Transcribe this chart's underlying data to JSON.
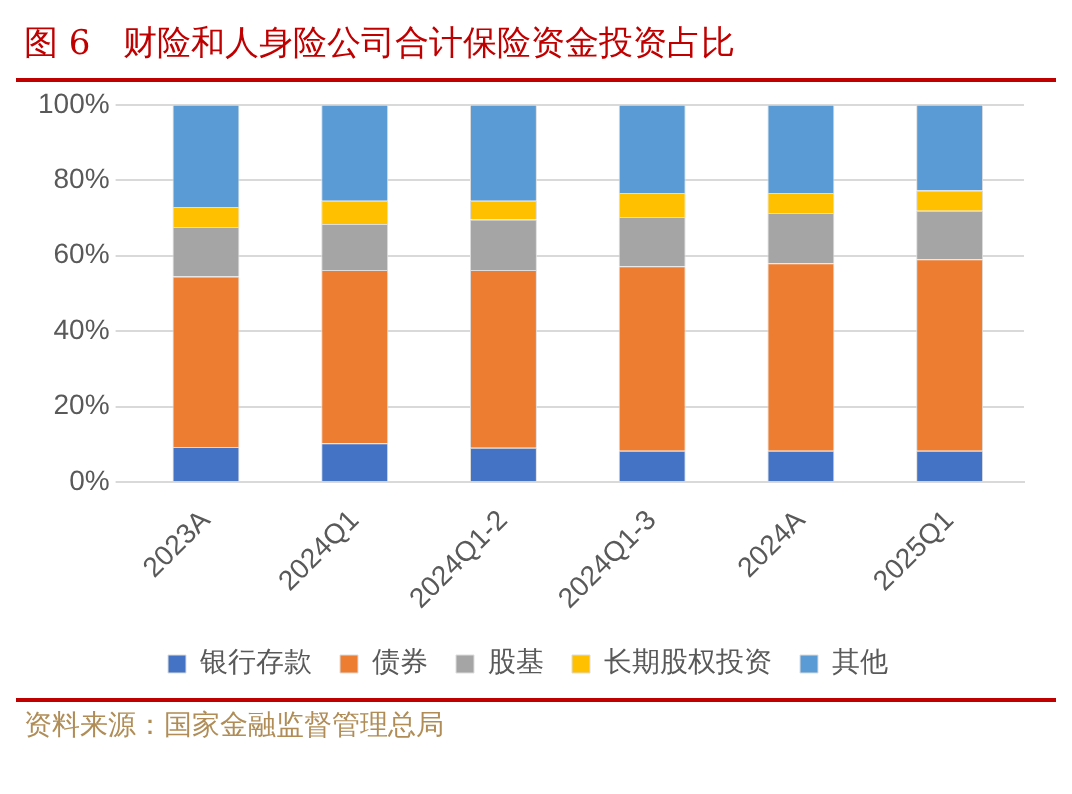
{
  "chart_data": {
    "type": "bar",
    "title": "图 6   财险和人身险公司合计保险资金投资占比",
    "stacked": true,
    "categories": [
      "2023A",
      "2024Q1",
      "2024Q1-2",
      "2024Q1-3",
      "2024A",
      "2025Q1"
    ],
    "series": [
      {
        "name": "银行存款",
        "color": "#4472c4",
        "values": [
          9.3,
          10.3,
          9.1,
          8.3,
          8.3,
          8.3
        ]
      },
      {
        "name": "债券",
        "color": "#ed7d31",
        "values": [
          45.2,
          45.9,
          47.1,
          48.9,
          49.7,
          50.8
        ]
      },
      {
        "name": "股基",
        "color": "#a5a5a5",
        "values": [
          13.1,
          12.2,
          13.4,
          13.1,
          13.3,
          12.8
        ]
      },
      {
        "name": "长期股权投资",
        "color": "#ffc000",
        "values": [
          5.3,
          6.2,
          5.0,
          6.3,
          5.3,
          5.4
        ]
      },
      {
        "name": "其他",
        "color": "#5b9bd5",
        "values": [
          27.1,
          25.4,
          25.4,
          23.4,
          23.4,
          22.7
        ]
      }
    ],
    "ylim": [
      0,
      100
    ],
    "yticks": [
      {
        "value": 0,
        "label": "0%"
      },
      {
        "value": 20,
        "label": "20%"
      },
      {
        "value": 40,
        "label": "40%"
      },
      {
        "value": 60,
        "label": "60%"
      },
      {
        "value": 80,
        "label": "80%"
      },
      {
        "value": 100,
        "label": "100%"
      }
    ],
    "grid": "y",
    "legend": "bottom",
    "annotations": [
      "资料来源：国家金融监督管理总局"
    ]
  }
}
